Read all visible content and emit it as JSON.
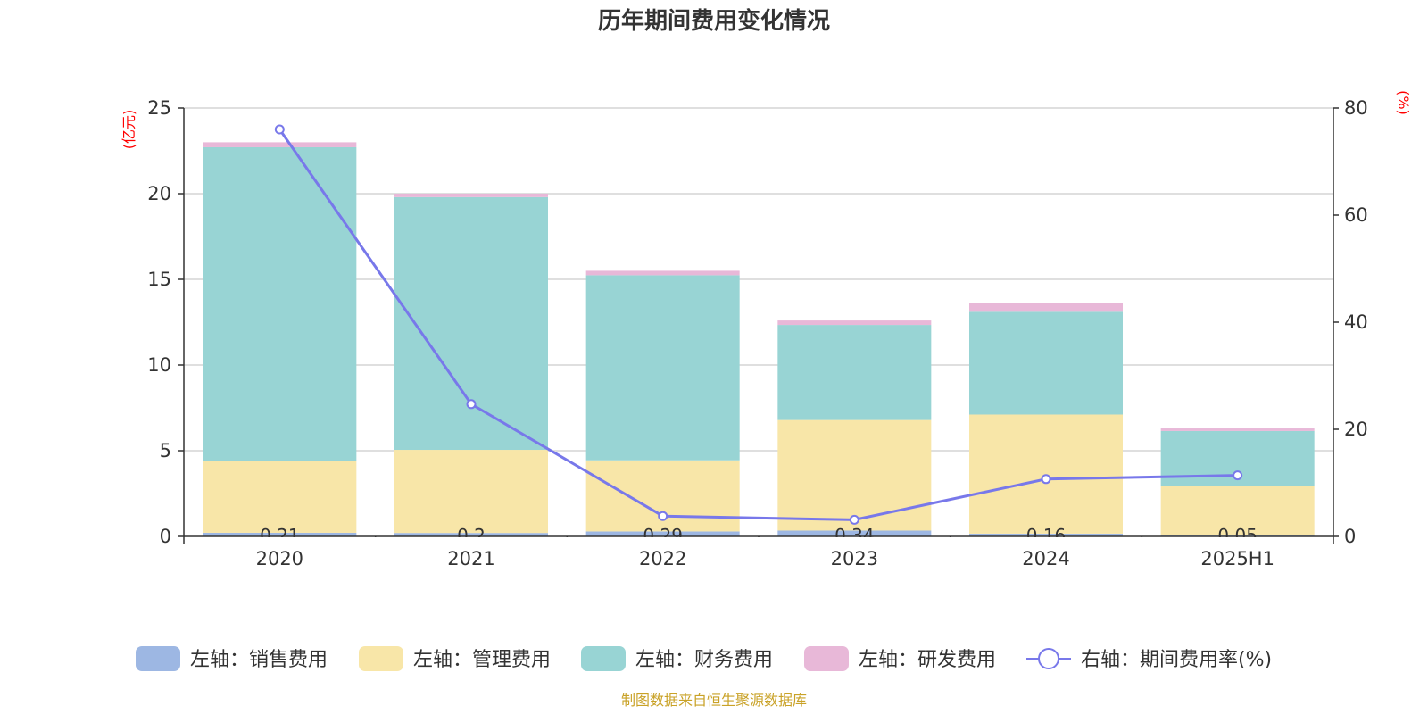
{
  "chart_data": {
    "type": "bar",
    "stacked": true,
    "title": "历年期间费用变化情况",
    "left_unit": "(亿元)",
    "right_unit": "(%)",
    "categories": [
      "2020",
      "2021",
      "2022",
      "2023",
      "2024",
      "2025H1"
    ],
    "left_axis": {
      "ylim": [
        0,
        25
      ],
      "ticks": [
        0,
        5,
        10,
        15,
        20,
        25
      ]
    },
    "right_axis": {
      "ylim": [
        0,
        80
      ],
      "ticks": [
        0,
        20,
        40,
        60,
        80
      ]
    },
    "grid": true,
    "series": [
      {
        "name": "左轴：销售费用",
        "axis": "left",
        "color": "#9db7e3",
        "values": [
          0.21,
          0.2,
          0.29,
          0.34,
          0.16,
          0.05
        ],
        "labels": [
          "0.21",
          "0.2",
          "0.29",
          "0.34",
          "0.16",
          "0.05"
        ]
      },
      {
        "name": "左轴：管理费用",
        "axis": "left",
        "color": "#f8e6a8",
        "values": [
          4.2,
          4.85,
          4.15,
          6.45,
          6.95,
          2.9
        ]
      },
      {
        "name": "左轴：财务费用",
        "axis": "left",
        "color": "#98d4d4",
        "values": [
          18.3,
          14.75,
          10.8,
          5.55,
          6.0,
          3.2
        ]
      },
      {
        "name": "左轴：研发费用",
        "axis": "left",
        "color": "#e8b8d8",
        "values": [
          0.29,
          0.2,
          0.26,
          0.26,
          0.49,
          0.15
        ]
      }
    ],
    "line": {
      "name": "右轴：期间费用率(%)",
      "axis": "right",
      "color": "#7878ea",
      "values": [
        76.0,
        24.7,
        3.8,
        3.1,
        10.7,
        11.4
      ]
    },
    "legend_position": "bottom",
    "source": "制图数据来自恒生聚源数据库"
  }
}
